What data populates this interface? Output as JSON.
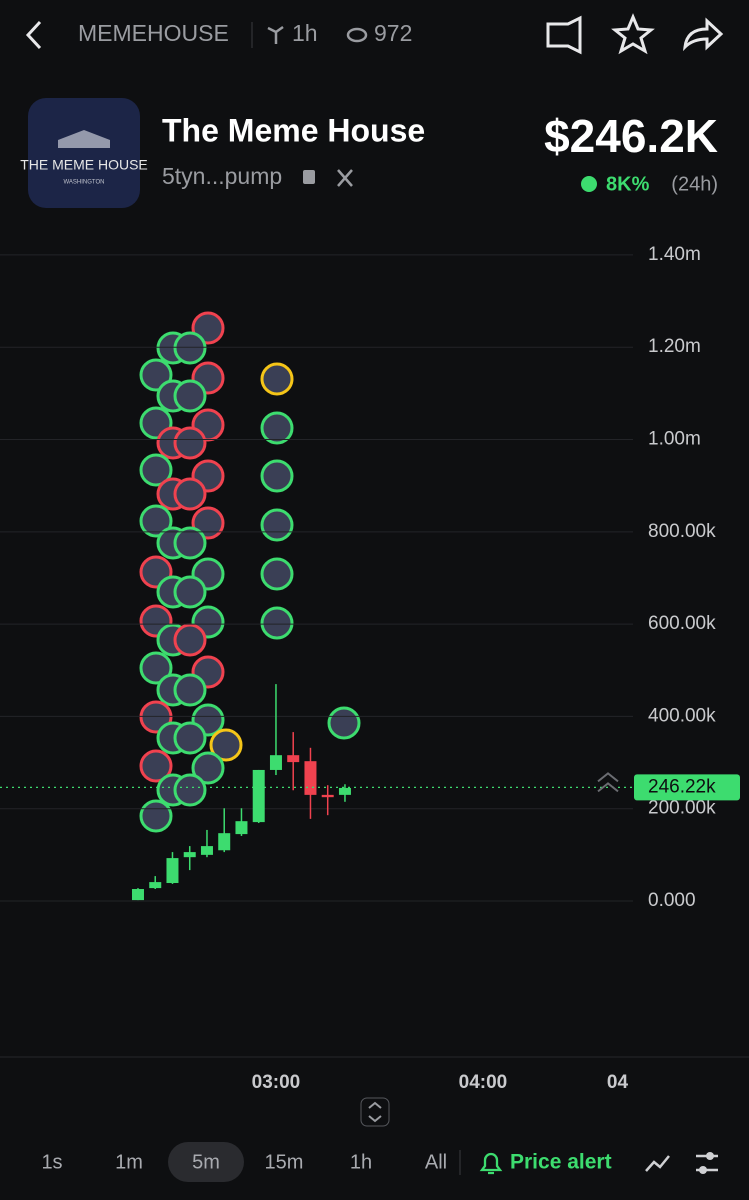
{
  "header": {
    "token_tag": "MEMEHOUSE",
    "age": "1h",
    "views": "972",
    "name": "The Meme House",
    "address": "5tyn...pump",
    "price": "$246.2K",
    "change": "8K%",
    "period": "(24h)",
    "logo_title": "THE MEME HOUSE",
    "logo_subtitle": "WASHINGTON"
  },
  "chart_data": {
    "type": "candlestick",
    "x": [
      140,
      145,
      150,
      155,
      160,
      165,
      170,
      175,
      180,
      185,
      190,
      195,
      200
    ],
    "open": [
      2000,
      28000,
      39000,
      95000,
      100000,
      110000,
      145000,
      171000,
      284000,
      316000,
      303000,
      230000,
      230000
    ],
    "high": [
      28000,
      54000,
      106000,
      119000,
      154000,
      201000,
      201000,
      284000,
      470000,
      366000,
      332000,
      251000,
      253000
    ],
    "low": [
      2000,
      26000,
      37000,
      67000,
      95000,
      106000,
      141000,
      169000,
      273000,
      240000,
      178000,
      186000,
      215000
    ],
    "close": [
      26000,
      41000,
      93000,
      106000,
      119000,
      147000,
      173000,
      284000,
      316000,
      301000,
      230000,
      225000,
      245000
    ],
    "up_color": "#3ddc6f",
    "down_color": "#f0424f",
    "xlim": [
      100,
      283.5
    ],
    "xticks": [
      {
        "value": 180,
        "label": "03:00"
      },
      {
        "value": 240,
        "label": "04:00"
      },
      {
        "value": 279,
        "label": "04"
      }
    ],
    "ylim": [
      -338000,
      1454000
    ],
    "yticks": [
      {
        "value": 0,
        "label": "0.000"
      },
      {
        "value": 200000,
        "label": "200.00k"
      },
      {
        "value": 400000,
        "label": "400.00k"
      },
      {
        "value": 600000,
        "label": "600.00k"
      },
      {
        "value": 800000,
        "label": "800.00k"
      },
      {
        "value": 1000000,
        "label": "1.00m"
      },
      {
        "value": 1200000,
        "label": "1.20m"
      },
      {
        "value": 1400000,
        "label": "1.40m"
      }
    ],
    "grid": true,
    "last_price": {
      "value": 246220,
      "label": "246.22k"
    }
  },
  "toolbar": {
    "intervals": [
      "1s",
      "1m",
      "5m",
      "15m",
      "1h",
      "All"
    ],
    "selected": 2,
    "price_alert": "Price alert"
  }
}
